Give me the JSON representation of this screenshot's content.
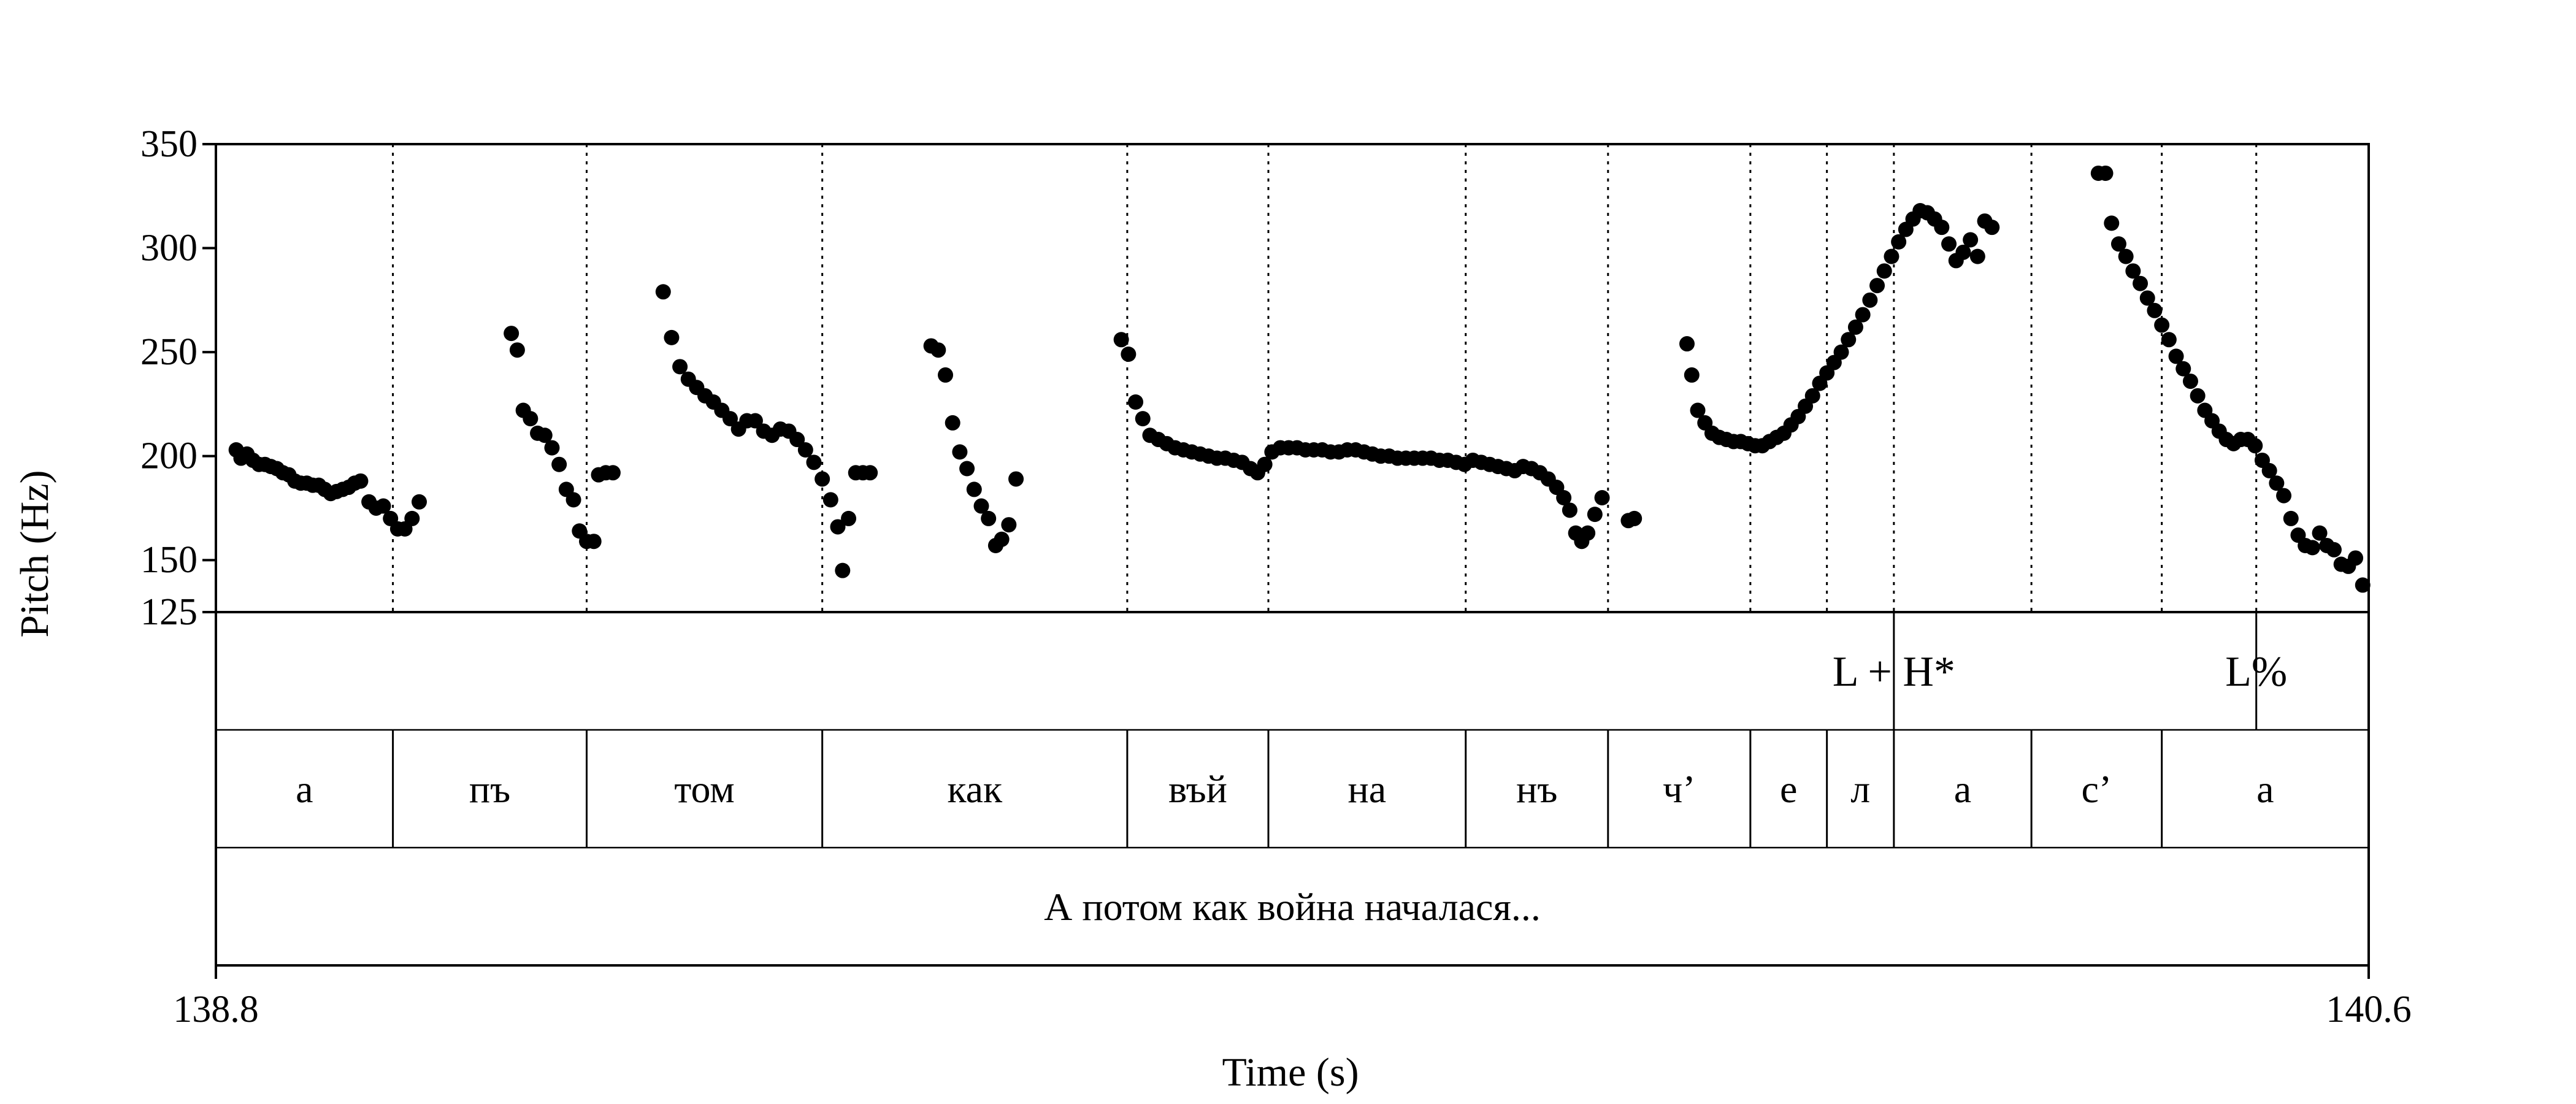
{
  "chart_data": {
    "type": "scatter",
    "title": "",
    "xlabel": "Time (s)",
    "ylabel": "Pitch (Hz)",
    "xlim": [
      138.8,
      140.6
    ],
    "ylim": [
      125,
      350
    ],
    "x_ticks": [
      "138.8",
      "140.6"
    ],
    "y_ticks": [
      125,
      150,
      200,
      250,
      300,
      350
    ],
    "grid": false,
    "series": [
      {
        "points": [
          [
            138.817,
            203
          ],
          [
            138.821,
            199
          ],
          [
            138.826,
            201
          ],
          [
            138.831,
            198
          ],
          [
            138.836,
            196
          ],
          [
            138.841,
            196
          ],
          [
            138.846,
            195
          ],
          [
            138.851,
            194
          ],
          [
            138.856,
            192
          ],
          [
            138.861,
            191
          ],
          [
            138.866,
            188
          ],
          [
            138.871,
            187
          ],
          [
            138.876,
            187
          ],
          [
            138.881,
            186
          ],
          [
            138.886,
            186
          ],
          [
            138.891,
            184
          ],
          [
            138.896,
            182
          ],
          [
            138.901,
            183
          ],
          [
            138.906,
            184
          ],
          [
            138.911,
            185
          ],
          [
            138.916,
            187
          ],
          [
            138.921,
            188
          ],
          [
            138.928,
            178
          ],
          [
            138.934,
            175
          ],
          [
            138.94,
            176
          ],
          [
            138.946,
            170
          ],
          [
            138.952,
            165
          ],
          [
            138.958,
            165
          ],
          [
            138.964,
            170
          ],
          [
            138.97,
            178
          ],
          [
            139.047,
            259
          ],
          [
            139.052,
            251
          ],
          [
            139.057,
            222
          ],
          [
            139.063,
            218
          ],
          [
            139.069,
            211
          ],
          [
            139.075,
            210
          ],
          [
            139.081,
            204
          ],
          [
            139.087,
            196
          ],
          [
            139.093,
            184
          ],
          [
            139.099,
            179
          ],
          [
            139.104,
            164
          ],
          [
            139.11,
            159
          ],
          [
            139.116,
            159
          ],
          [
            139.12,
            191
          ],
          [
            139.126,
            192
          ],
          [
            139.132,
            192
          ],
          [
            139.174,
            279
          ],
          [
            139.181,
            257
          ],
          [
            139.188,
            243
          ],
          [
            139.195,
            237
          ],
          [
            139.202,
            233
          ],
          [
            139.209,
            229
          ],
          [
            139.216,
            226
          ],
          [
            139.223,
            222
          ],
          [
            139.23,
            218
          ],
          [
            139.237,
            213
          ],
          [
            139.244,
            217
          ],
          [
            139.251,
            217
          ],
          [
            139.258,
            212
          ],
          [
            139.265,
            210
          ],
          [
            139.272,
            213
          ],
          [
            139.279,
            212
          ],
          [
            139.286,
            208
          ],
          [
            139.293,
            203
          ],
          [
            139.3,
            197
          ],
          [
            139.307,
            189
          ],
          [
            139.314,
            179
          ],
          [
            139.32,
            166
          ],
          [
            139.324,
            145
          ],
          [
            139.329,
            170
          ],
          [
            139.335,
            192
          ],
          [
            139.341,
            192
          ],
          [
            139.347,
            192
          ],
          [
            139.398,
            253
          ],
          [
            139.404,
            251
          ],
          [
            139.41,
            239
          ],
          [
            139.416,
            216
          ],
          [
            139.422,
            202
          ],
          [
            139.428,
            194
          ],
          [
            139.434,
            184
          ],
          [
            139.44,
            176
          ],
          [
            139.446,
            170
          ],
          [
            139.452,
            157
          ],
          [
            139.457,
            160
          ],
          [
            139.463,
            167
          ],
          [
            139.469,
            189
          ],
          [
            139.557,
            256
          ],
          [
            139.563,
            249
          ],
          [
            139.569,
            226
          ],
          [
            139.575,
            218
          ],
          [
            139.581,
            210
          ],
          [
            139.588,
            208
          ],
          [
            139.595,
            206
          ],
          [
            139.602,
            204
          ],
          [
            139.609,
            203
          ],
          [
            139.616,
            202
          ],
          [
            139.623,
            201
          ],
          [
            139.63,
            200
          ],
          [
            139.637,
            199
          ],
          [
            139.644,
            199
          ],
          [
            139.651,
            198
          ],
          [
            139.658,
            197
          ],
          [
            139.665,
            194
          ],
          [
            139.671,
            192
          ],
          [
            139.677,
            196
          ],
          [
            139.683,
            202
          ],
          [
            139.69,
            204
          ],
          [
            139.697,
            204
          ],
          [
            139.704,
            204
          ],
          [
            139.711,
            203
          ],
          [
            139.718,
            203
          ],
          [
            139.725,
            203
          ],
          [
            139.732,
            202
          ],
          [
            139.739,
            202
          ],
          [
            139.746,
            203
          ],
          [
            139.753,
            203
          ],
          [
            139.76,
            202
          ],
          [
            139.767,
            201
          ],
          [
            139.774,
            200
          ],
          [
            139.781,
            200
          ],
          [
            139.788,
            199
          ],
          [
            139.795,
            199
          ],
          [
            139.802,
            199
          ],
          [
            139.809,
            199
          ],
          [
            139.816,
            199
          ],
          [
            139.823,
            198
          ],
          [
            139.83,
            198
          ],
          [
            139.837,
            197
          ],
          [
            139.844,
            196
          ],
          [
            139.851,
            198
          ],
          [
            139.858,
            197
          ],
          [
            139.865,
            196
          ],
          [
            139.872,
            195
          ],
          [
            139.879,
            194
          ],
          [
            139.886,
            193
          ],
          [
            139.893,
            195
          ],
          [
            139.9,
            194
          ],
          [
            139.907,
            192
          ],
          [
            139.914,
            189
          ],
          [
            139.921,
            185
          ],
          [
            139.927,
            180
          ],
          [
            139.932,
            174
          ],
          [
            139.937,
            163
          ],
          [
            139.942,
            159
          ],
          [
            139.947,
            163
          ],
          [
            139.953,
            172
          ],
          [
            139.959,
            180
          ],
          [
            139.981,
            169
          ],
          [
            139.986,
            170
          ],
          [
            140.03,
            254
          ],
          [
            140.034,
            239
          ],
          [
            140.039,
            222
          ],
          [
            140.045,
            216
          ],
          [
            140.051,
            211
          ],
          [
            140.057,
            209
          ],
          [
            140.063,
            208
          ],
          [
            140.069,
            207
          ],
          [
            140.075,
            207
          ],
          [
            140.081,
            206
          ],
          [
            140.087,
            205
          ],
          [
            140.093,
            205
          ],
          [
            140.099,
            207
          ],
          [
            140.105,
            209
          ],
          [
            140.111,
            211
          ],
          [
            140.117,
            215
          ],
          [
            140.123,
            219
          ],
          [
            140.129,
            224
          ],
          [
            140.135,
            229
          ],
          [
            140.141,
            235
          ],
          [
            140.147,
            240
          ],
          [
            140.153,
            245
          ],
          [
            140.159,
            250
          ],
          [
            140.165,
            256
          ],
          [
            140.171,
            262
          ],
          [
            140.177,
            268
          ],
          [
            140.183,
            275
          ],
          [
            140.189,
            282
          ],
          [
            140.195,
            289
          ],
          [
            140.201,
            296
          ],
          [
            140.207,
            303
          ],
          [
            140.213,
            309
          ],
          [
            140.219,
            314
          ],
          [
            140.225,
            318
          ],
          [
            140.231,
            317
          ],
          [
            140.237,
            314
          ],
          [
            140.243,
            310
          ],
          [
            140.249,
            302
          ],
          [
            140.255,
            294
          ],
          [
            140.261,
            298
          ],
          [
            140.267,
            304
          ],
          [
            140.273,
            296
          ],
          [
            140.279,
            313
          ],
          [
            140.285,
            310
          ],
          [
            140.374,
            336
          ],
          [
            140.38,
            336
          ],
          [
            140.385,
            312
          ],
          [
            140.391,
            302
          ],
          [
            140.397,
            296
          ],
          [
            140.403,
            289
          ],
          [
            140.409,
            283
          ],
          [
            140.415,
            276
          ],
          [
            140.421,
            270
          ],
          [
            140.427,
            263
          ],
          [
            140.433,
            256
          ],
          [
            140.439,
            248
          ],
          [
            140.445,
            242
          ],
          [
            140.451,
            236
          ],
          [
            140.457,
            229
          ],
          [
            140.463,
            222
          ],
          [
            140.469,
            217
          ],
          [
            140.475,
            212
          ],
          [
            140.481,
            208
          ],
          [
            140.487,
            206
          ],
          [
            140.493,
            208
          ],
          [
            140.499,
            208
          ],
          [
            140.505,
            205
          ],
          [
            140.511,
            198
          ],
          [
            140.517,
            193
          ],
          [
            140.523,
            187
          ],
          [
            140.529,
            181
          ],
          [
            140.535,
            170
          ],
          [
            140.541,
            162
          ],
          [
            140.547,
            157
          ],
          [
            140.553,
            156
          ],
          [
            140.559,
            163
          ],
          [
            140.565,
            157
          ],
          [
            140.571,
            155
          ],
          [
            140.577,
            148
          ],
          [
            140.583,
            147
          ],
          [
            140.589,
            151
          ],
          [
            140.595,
            138
          ]
        ]
      }
    ],
    "boundaries": [
      138.948,
      139.11,
      139.307,
      139.562,
      139.68,
      139.845,
      139.964,
      140.083,
      140.147,
      140.203,
      140.318,
      140.427,
      140.506
    ],
    "tone_tier": [
      {
        "label": "L + H*",
        "time": 140.203
      },
      {
        "label": "L%",
        "time": 140.506
      }
    ],
    "segments": [
      {
        "label": "а",
        "start": 138.8,
        "end": 138.948
      },
      {
        "label": "пъ",
        "start": 138.948,
        "end": 139.11
      },
      {
        "label": "том",
        "start": 139.11,
        "end": 139.307
      },
      {
        "label": "как",
        "start": 139.307,
        "end": 139.562
      },
      {
        "label": "въй",
        "start": 139.562,
        "end": 139.68
      },
      {
        "label": "на",
        "start": 139.68,
        "end": 139.845
      },
      {
        "label": "нъ",
        "start": 139.845,
        "end": 139.964
      },
      {
        "label": "ч’",
        "start": 139.964,
        "end": 140.083
      },
      {
        "label": "е",
        "start": 140.083,
        "end": 140.147
      },
      {
        "label": "л",
        "start": 140.147,
        "end": 140.203
      },
      {
        "label": "а",
        "start": 140.203,
        "end": 140.318
      },
      {
        "label": "с’",
        "start": 140.318,
        "end": 140.427
      },
      {
        "label": "а",
        "start": 140.427,
        "end": 140.6
      }
    ],
    "utterance": {
      "label": "А потом как война началася...",
      "start": 138.8,
      "end": 140.6
    }
  }
}
